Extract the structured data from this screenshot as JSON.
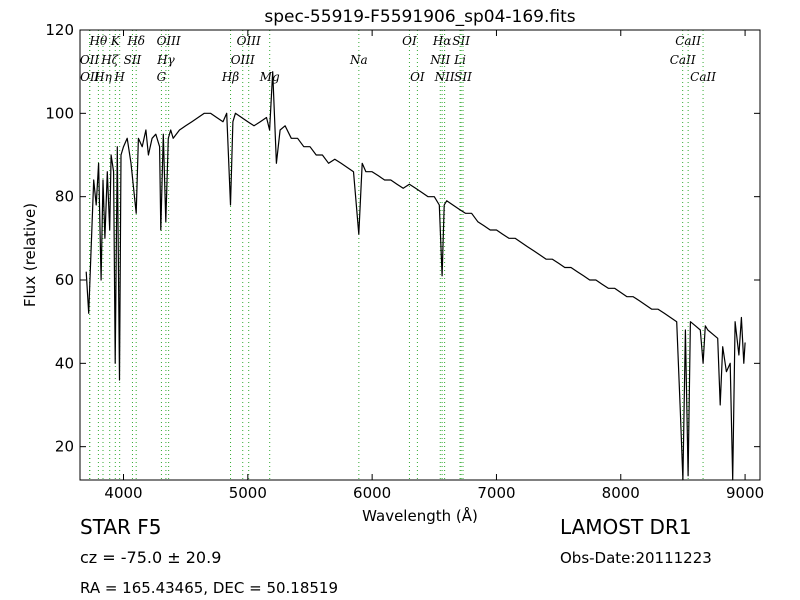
{
  "chart_data": {
    "type": "line",
    "title": "spec-55919-F5591906_sp04-169.fits",
    "xlabel": "Wavelength (Å)",
    "ylabel": "Flux (relative)",
    "xlim": [
      3650,
      9120
    ],
    "ylim": [
      12,
      120
    ],
    "xticks": [
      4000,
      5000,
      6000,
      7000,
      8000,
      9000
    ],
    "yticks": [
      20,
      40,
      60,
      80,
      100,
      120
    ],
    "xtick_labels": [
      "4000",
      "5000",
      "6000",
      "7000",
      "8000",
      "9000"
    ],
    "ytick_labels": [
      "20",
      "40",
      "60",
      "80",
      "100",
      "120"
    ],
    "grid": false,
    "line_color": "#000000",
    "marker_color": "#33aa33",
    "series": [
      {
        "x": [
          3700,
          3720,
          3740,
          3760,
          3780,
          3800,
          3820,
          3835,
          3850,
          3870,
          3889,
          3900,
          3920,
          3933,
          3950,
          3968,
          3980,
          4000,
          4030,
          4060,
          4102,
          4120,
          4150,
          4180,
          4200,
          4230,
          4260,
          4290,
          4300,
          4320,
          4340,
          4360,
          4380,
          4400,
          4450,
          4500,
          4550,
          4600,
          4650,
          4700,
          4750,
          4800,
          4830,
          4861,
          4880,
          4900,
          4950,
          5000,
          5050,
          5100,
          5150,
          5175,
          5200,
          5230,
          5260,
          5300,
          5350,
          5400,
          5450,
          5500,
          5550,
          5600,
          5650,
          5700,
          5750,
          5800,
          5850,
          5893,
          5920,
          5950,
          6000,
          6050,
          6100,
          6150,
          6200,
          6250,
          6300,
          6350,
          6400,
          6450,
          6500,
          6540,
          6563,
          6580,
          6600,
          6650,
          6700,
          6750,
          6800,
          6850,
          6900,
          6950,
          7000,
          7050,
          7100,
          7150,
          7200,
          7250,
          7300,
          7350,
          7400,
          7450,
          7500,
          7550,
          7600,
          7650,
          7700,
          7750,
          7800,
          7850,
          7900,
          7950,
          8000,
          8050,
          8100,
          8150,
          8200,
          8250,
          8300,
          8350,
          8400,
          8450,
          8480,
          8500,
          8520,
          8542,
          8560,
          8600,
          8640,
          8662,
          8680,
          8700,
          8740,
          8780,
          8800,
          8820,
          8850,
          8880,
          8900,
          8920,
          8950,
          8970,
          8990,
          9000
        ],
        "y": [
          62,
          52,
          68,
          84,
          78,
          88,
          60,
          84,
          70,
          86,
          72,
          90,
          86,
          40,
          92,
          36,
          90,
          92,
          94,
          88,
          76,
          94,
          92,
          96,
          90,
          94,
          95,
          92,
          72,
          95,
          74,
          94,
          96,
          94,
          96,
          97,
          98,
          99,
          100,
          100,
          99,
          98,
          100,
          78,
          98,
          100,
          99,
          98,
          97,
          98,
          99,
          96,
          110,
          88,
          96,
          97,
          94,
          94,
          92,
          92,
          90,
          90,
          88,
          89,
          88,
          87,
          86,
          71,
          88,
          86,
          86,
          85,
          84,
          84,
          83,
          82,
          83,
          82,
          81,
          80,
          80,
          78,
          61,
          78,
          79,
          78,
          77,
          76,
          76,
          74,
          73,
          72,
          72,
          71,
          70,
          70,
          69,
          68,
          67,
          66,
          65,
          65,
          64,
          63,
          63,
          62,
          61,
          60,
          60,
          59,
          58,
          58,
          57,
          56,
          56,
          55,
          54,
          53,
          53,
          52,
          51,
          50,
          28,
          12,
          48,
          13,
          50,
          49,
          48,
          40,
          49,
          48,
          47,
          46,
          30,
          44,
          38,
          40,
          12,
          50,
          42,
          51,
          40,
          45
        ]
      }
    ],
    "line_markers": [
      {
        "label": "OII",
        "x": 3727,
        "group": "top",
        "row": 1
      },
      {
        "label": "OII",
        "x": 3729,
        "group": "top",
        "row": 2
      },
      {
        "label": "Hθ",
        "x": 3798,
        "group": "top",
        "row": 0
      },
      {
        "label": "Hη",
        "x": 3835,
        "group": "top",
        "row": 2
      },
      {
        "label": "Hζ",
        "x": 3889,
        "group": "top",
        "row": 1
      },
      {
        "label": "K",
        "x": 3934,
        "group": "top",
        "row": 0
      },
      {
        "label": "H",
        "x": 3969,
        "group": "top",
        "row": 2
      },
      {
        "label": "SII",
        "x": 4072,
        "group": "top",
        "row": 1
      },
      {
        "label": "Hδ",
        "x": 4102,
        "group": "top",
        "row": 0
      },
      {
        "label": "G",
        "x": 4305,
        "group": "top",
        "row": 2
      },
      {
        "label": "Hγ",
        "x": 4341,
        "group": "top",
        "row": 1
      },
      {
        "label": "OIII",
        "x": 4363,
        "group": "top",
        "row": 0
      },
      {
        "label": "Hβ",
        "x": 4861,
        "group": "top",
        "row": 2
      },
      {
        "label": "OIII",
        "x": 4959,
        "group": "top",
        "row": 1
      },
      {
        "label": "OIII",
        "x": 5007,
        "group": "top",
        "row": 0
      },
      {
        "label": "Mg",
        "x": 5176,
        "group": "top",
        "row": 2
      },
      {
        "label": "Na",
        "x": 5893,
        "group": "top",
        "row": 1
      },
      {
        "label": "OI",
        "x": 6300,
        "group": "top",
        "row": 0
      },
      {
        "label": "OI",
        "x": 6364,
        "group": "top",
        "row": 2
      },
      {
        "label": "NII",
        "x": 6548,
        "group": "top",
        "row": 1
      },
      {
        "label": "Hα",
        "x": 6563,
        "group": "top",
        "row": 0
      },
      {
        "label": "NII",
        "x": 6583,
        "group": "top",
        "row": 2
      },
      {
        "label": "Li",
        "x": 6707,
        "group": "top",
        "row": 1
      },
      {
        "label": "SII",
        "x": 6716,
        "group": "top",
        "row": 0
      },
      {
        "label": "SII",
        "x": 6731,
        "group": "top",
        "row": 2
      },
      {
        "label": "CaII",
        "x": 8498,
        "group": "top",
        "row": 1
      },
      {
        "label": "CaII",
        "x": 8542,
        "group": "top",
        "row": 0
      },
      {
        "label": "CaII",
        "x": 8662,
        "group": "top",
        "row": 2
      }
    ]
  },
  "info": {
    "class_text": "STAR   F5",
    "survey_text": "LAMOST DR1",
    "cz_text": "cz = -75.0 ± 20.9",
    "obs_date_text": "Obs-Date:20111223",
    "radec_text": "RA = 165.43465, DEC = 50.18519"
  }
}
